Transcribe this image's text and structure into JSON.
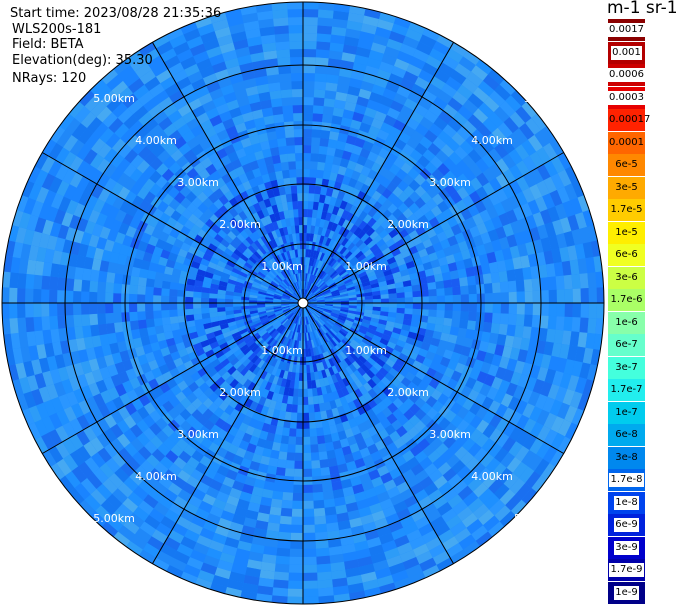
{
  "header": {
    "start_time": "Start time: 2023/08/28 21:35:36",
    "device": "WLS200s-181",
    "field": "Field: BETA",
    "elevation": "Elevation(deg): 35.30",
    "nrays": "NRays: 120"
  },
  "colorbar": {
    "unit": "m-1 sr-1",
    "labels": [
      "0.0017",
      "0.001",
      "0.0006",
      "0.0003",
      "0.00017",
      "0.0001",
      "6e-5",
      "3e-5",
      "1.7e-5",
      "1e-5",
      "6e-6",
      "3e-6",
      "1.7e-6",
      "1e-6",
      "6e-7",
      "3e-7",
      "1.7e-7",
      "1e-7",
      "6e-8",
      "3e-8",
      "1.7e-8",
      "1e-8",
      "6e-9",
      "3e-9",
      "1.7e-9",
      "1e-9"
    ],
    "colors": [
      "#8b0000",
      "#b30000",
      "#cc0000",
      "#e60000",
      "#ff2200",
      "#ff6600",
      "#ff8800",
      "#ffaa00",
      "#ffcc00",
      "#ffee00",
      "#f0ff22",
      "#ccff44",
      "#aaff66",
      "#88ffaa",
      "#66ffcc",
      "#44ffdd",
      "#22eeee",
      "#00ccee",
      "#00aaee",
      "#0088ee",
      "#0066ee",
      "#0044ee",
      "#0022dd",
      "#0000cc",
      "#0000aa",
      "#000088"
    ]
  },
  "rings": {
    "labels": [
      "1.00km",
      "2.00km",
      "3.00km",
      "4.00km",
      "5.00km"
    ]
  },
  "colors": {
    "field_main": "#1e90ff",
    "field_dark": "#1560e0",
    "grid": "#000000"
  }
}
